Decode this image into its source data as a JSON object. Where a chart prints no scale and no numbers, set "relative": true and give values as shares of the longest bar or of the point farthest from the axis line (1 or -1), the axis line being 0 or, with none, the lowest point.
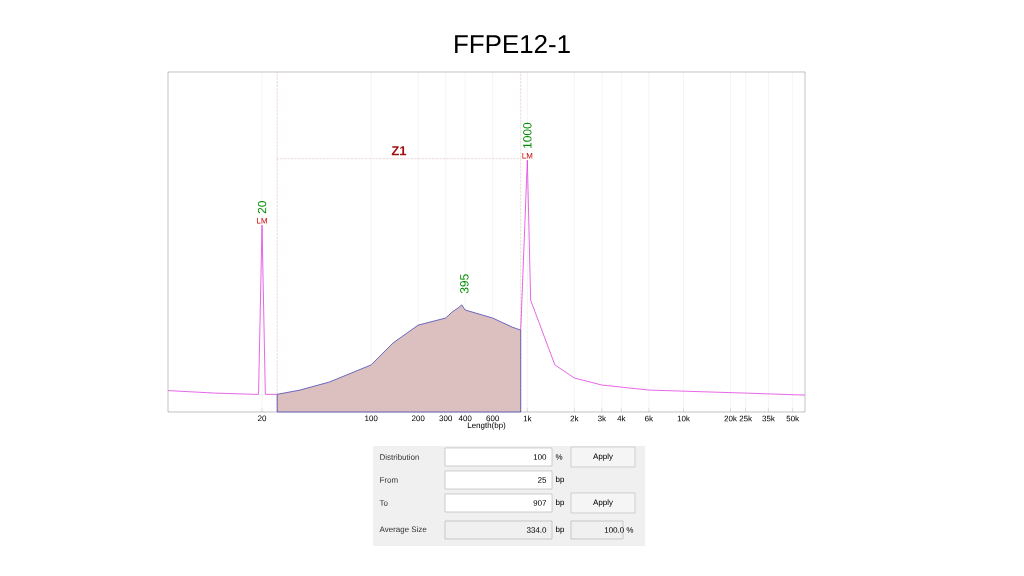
{
  "chart_data": [
    {
      "type": "line",
      "title": "FFPE12-1",
      "xlabel": "Length(bp)",
      "relative": true,
      "log": "x",
      "grid": "x",
      "xlim": [
        5,
        60000
      ],
      "xticks": [
        20,
        100,
        200,
        300,
        400,
        600,
        {
          "value": 1000,
          "label": "1k"
        },
        {
          "value": 2000,
          "label": "2k"
        },
        {
          "value": 3000,
          "label": "3k"
        },
        {
          "value": 4000,
          "label": "4k"
        },
        {
          "value": 6000,
          "label": "6k"
        },
        {
          "value": 10000,
          "label": "10k"
        },
        {
          "value": 20000,
          "label": "20k"
        },
        {
          "value": 25000,
          "label": "25k"
        },
        {
          "value": 35000,
          "label": "35k"
        },
        {
          "value": 50000,
          "label": "50k"
        }
      ],
      "series": [
        {
          "type": "area",
          "color": "#4a4ab8",
          "x": [
            25,
            35,
            54,
            100,
            138,
            200,
            300,
            330,
            360,
            380,
            400,
            600,
            800,
            907
          ],
          "values": [
            0.07,
            0.087,
            0.119,
            0.187,
            0.274,
            0.345,
            0.373,
            0.397,
            0.413,
            0.425,
            0.405,
            0.373,
            0.337,
            0.325
          ]
        },
        {
          "color": "#e040e0",
          "x": [
            5,
            10,
            18,
            19,
            20,
            21,
            25,
            100,
            907,
            1000,
            1050,
            1500,
            2000,
            3000,
            6000,
            25000,
            60000
          ],
          "values": [
            0.085,
            0.075,
            0.07,
            0.07,
            0.742,
            0.07,
            0.07,
            null,
            0.325,
            1.0,
            0.444,
            0.187,
            0.135,
            0.107,
            0.087,
            0.075,
            0.067
          ]
        }
      ],
      "ref_lines": [
        {
          "axis": "x",
          "value": 25,
          "color": "#a01010",
          "line_style": "dotted"
        },
        {
          "axis": "x",
          "value": 907,
          "color": "#a01010",
          "line_style": "dotted"
        }
      ],
      "annotations": [
        "Z1",
        {
          "text": "20",
          "x": 20,
          "y": 0.742
        },
        {
          "text": "1000",
          "x": 1000,
          "y": 1.0
        },
        {
          "text": "395",
          "x": 395,
          "y": 0.425
        },
        {
          "text": "LM",
          "x": 20,
          "y": 0.742
        },
        {
          "text": "LM",
          "x": 1000,
          "y": 1.0
        }
      ]
    },
    {
      "type": "other",
      "annotations": [
        "Distribution",
        "100",
        "%",
        "Apply",
        "From",
        "25",
        "bp",
        "To",
        "907",
        "bp",
        "Apply",
        "Average Size",
        "334.0",
        "bp",
        "100.0 %"
      ]
    }
  ]
}
